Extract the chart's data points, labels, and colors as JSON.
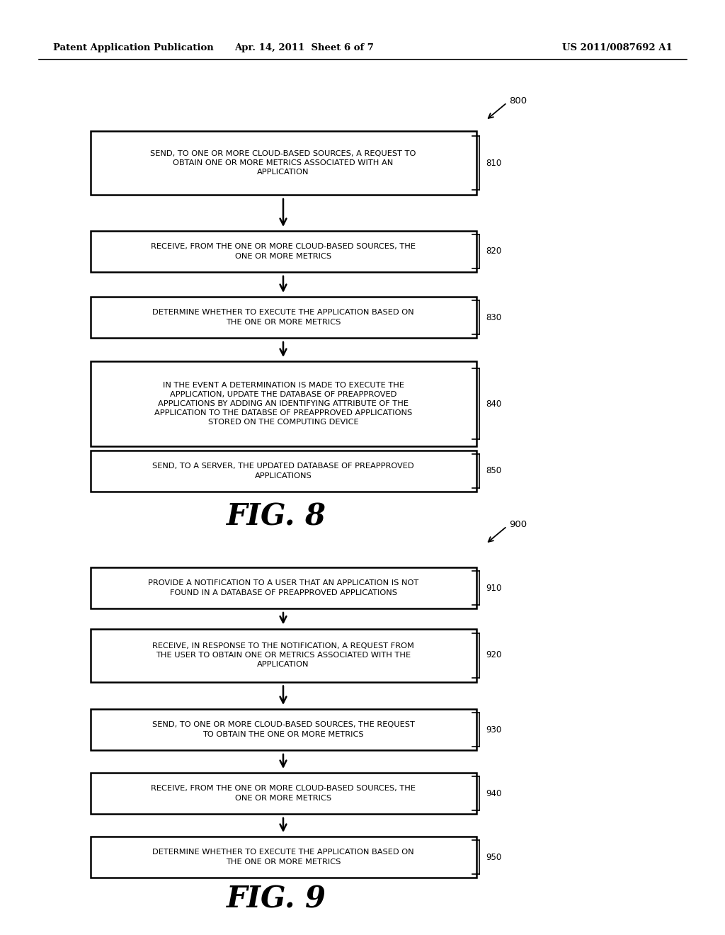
{
  "background_color": "#ffffff",
  "header_left": "Patent Application Publication",
  "header_center": "Apr. 14, 2011  Sheet 6 of 7",
  "header_right": "US 2011/0087692 A1",
  "fig8_label": "800",
  "fig8_caption": "FIG. 8",
  "fig9_label": "900",
  "fig9_caption": "FIG. 9",
  "fig8_boxes": [
    {
      "id": "810",
      "text": "SEND, TO ONE OR MORE CLOUD-BASED SOURCES, A REQUEST TO\nOBTAIN ONE OR MORE METRICS ASSOCIATED WITH AN\nAPPLICATION"
    },
    {
      "id": "820",
      "text": "RECEIVE, FROM THE ONE OR MORE CLOUD-BASED SOURCES, THE\nONE OR MORE METRICS"
    },
    {
      "id": "830",
      "text": "DETERMINE WHETHER TO EXECUTE THE APPLICATION BASED ON\nTHE ONE OR MORE METRICS"
    },
    {
      "id": "840",
      "text": "IN THE EVENT A DETERMINATION IS MADE TO EXECUTE THE\nAPPLICATION, UPDATE THE DATABASE OF PREAPPROVED\nAPPLICATIONS BY ADDING AN IDENTIFYING ATTRIBUTE OF THE\nAPPLICATION TO THE DATABSE OF PREAPPROVED APPLICATIONS\nSTORED ON THE COMPUTING DEVICE"
    },
    {
      "id": "850",
      "text": "SEND, TO A SERVER, THE UPDATED DATABASE OF PREAPPROVED\nAPPLICATIONS"
    }
  ],
  "fig9_boxes": [
    {
      "id": "910",
      "text": "PROVIDE A NOTIFICATION TO A USER THAT AN APPLICATION IS NOT\nFOUND IN A DATABASE OF PREAPPROVED APPLICATIONS"
    },
    {
      "id": "920",
      "text": "RECEIVE, IN RESPONSE TO THE NOTIFICATION, A REQUEST FROM\nTHE USER TO OBTAIN ONE OR METRICS ASSOCIATED WITH THE\nAPPLICATION"
    },
    {
      "id": "930",
      "text": "SEND, TO ONE OR MORE CLOUD-BASED SOURCES, THE REQUEST\nTO OBTAIN THE ONE OR MORE METRICS"
    },
    {
      "id": "940",
      "text": "RECEIVE, FROM THE ONE OR MORE CLOUD-BASED SOURCES, THE\nONE OR MORE METRICS"
    },
    {
      "id": "950",
      "text": "DETERMINE WHETHER TO EXECUTE THE APPLICATION BASED ON\nTHE ONE OR MORE METRICS"
    }
  ]
}
